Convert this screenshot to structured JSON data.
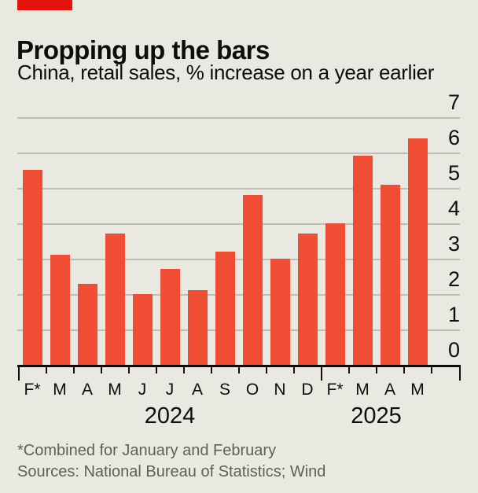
{
  "header": {
    "title": "Propping up the bars",
    "subtitle": "China, retail sales, % increase on a year earlier"
  },
  "chart_data": {
    "type": "bar",
    "title": "Propping up the bars",
    "subtitle": "China, retail sales, % increase on a year earlier",
    "categories": [
      "F*",
      "M",
      "A",
      "M",
      "J",
      "J",
      "A",
      "S",
      "O",
      "N",
      "D",
      "F*",
      "M",
      "A",
      "M"
    ],
    "values": [
      5.5,
      3.1,
      2.3,
      3.7,
      2.0,
      2.7,
      2.1,
      3.2,
      4.8,
      3.0,
      3.7,
      4.0,
      5.9,
      5.1,
      6.4
    ],
    "year_groups": [
      {
        "label": "2024",
        "from": 0,
        "to": 10
      },
      {
        "label": "2025",
        "from": 11,
        "to": 14
      }
    ],
    "xlabel": "",
    "ylabel": "",
    "ylim": [
      0,
      7
    ],
    "y_ticks": [
      0,
      1,
      2,
      3,
      4,
      5,
      6,
      7
    ],
    "grid": true,
    "y_axis_side": "right",
    "legend": "none"
  },
  "footer": {
    "footnote": "*Combined for January and February",
    "sources": "Sources: National Bureau of Statistics; Wind"
  },
  "colors": {
    "background": "#e9e9e1",
    "bar": "#f04d35",
    "brand_tab": "#e3120b",
    "gridline": "#bebeb6",
    "axis": "#0e0e0e",
    "text": "#0d0d0d",
    "muted_text": "#5f5f58"
  }
}
